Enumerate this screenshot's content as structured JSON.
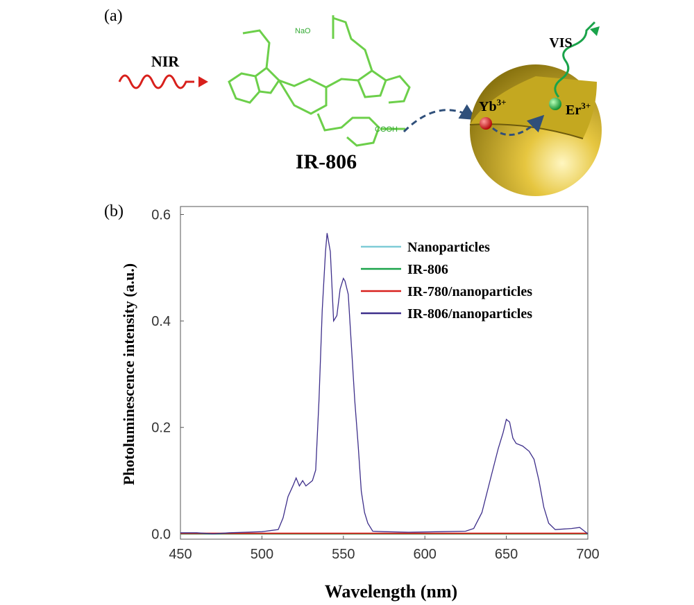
{
  "diagram": {
    "panel_label": "(a)",
    "input_label": "NIR",
    "molecule_label": "IR-806",
    "salt_group": "NaO",
    "acid_group": "COOH",
    "output_label": "VIS",
    "yb": {
      "symbol": "Yb",
      "charge": "3+"
    },
    "er": {
      "symbol": "Er",
      "charge": "3+"
    }
  },
  "chart_data": {
    "type": "line",
    "panel_label": "(b)",
    "xlabel": "Wavelength (nm)",
    "ylabel": "Photoluminescence intensity (a.u.)",
    "xlim": [
      450,
      700
    ],
    "xticks": [
      450,
      500,
      550,
      600,
      650,
      700
    ],
    "ylim": [
      -0.01,
      0.615
    ],
    "yticks": [
      {
        "value": 0,
        "label": "0.0"
      },
      0.2,
      0.4,
      0.6
    ],
    "series": [
      {
        "name": "Nanoparticles",
        "color": "#7ecbd6",
        "x": [
          450,
          700
        ],
        "values": [
          0,
          0
        ]
      },
      {
        "name": "IR-806",
        "color": "#1aa34a",
        "x": [
          450,
          700
        ],
        "values": [
          0,
          0
        ]
      },
      {
        "name": "IR-780/nanoparticles",
        "color": "#d8201c",
        "x": [
          450,
          700
        ],
        "values": [
          0.001,
          0.001
        ]
      },
      {
        "name": "IR-806/nanoparticles",
        "color": "#3d2e8a",
        "x": [
          450,
          460,
          470,
          480,
          490,
          500,
          505,
          510,
          513,
          516,
          519,
          521,
          523,
          525,
          527,
          529,
          531,
          533,
          535,
          537,
          539,
          540,
          542,
          544,
          546,
          548,
          550,
          551,
          553,
          555,
          557,
          559,
          561,
          563,
          565,
          568,
          575,
          590,
          610,
          625,
          630,
          635,
          640,
          645,
          648,
          650,
          652,
          654,
          656,
          660,
          664,
          667,
          670,
          673,
          676,
          680,
          690,
          695,
          700
        ],
        "values": [
          0.002,
          0.002,
          0.0,
          0.002,
          0.003,
          0.004,
          0.006,
          0.008,
          0.03,
          0.07,
          0.09,
          0.105,
          0.09,
          0.1,
          0.09,
          0.095,
          0.1,
          0.12,
          0.25,
          0.42,
          0.53,
          0.565,
          0.53,
          0.4,
          0.41,
          0.46,
          0.48,
          0.475,
          0.45,
          0.35,
          0.25,
          0.17,
          0.08,
          0.04,
          0.02,
          0.005,
          0.004,
          0.003,
          0.004,
          0.005,
          0.01,
          0.04,
          0.1,
          0.16,
          0.19,
          0.215,
          0.21,
          0.18,
          0.17,
          0.165,
          0.155,
          0.14,
          0.1,
          0.05,
          0.02,
          0.008,
          0.01,
          0.012,
          0.0
        ]
      }
    ],
    "legend": "upper right"
  }
}
